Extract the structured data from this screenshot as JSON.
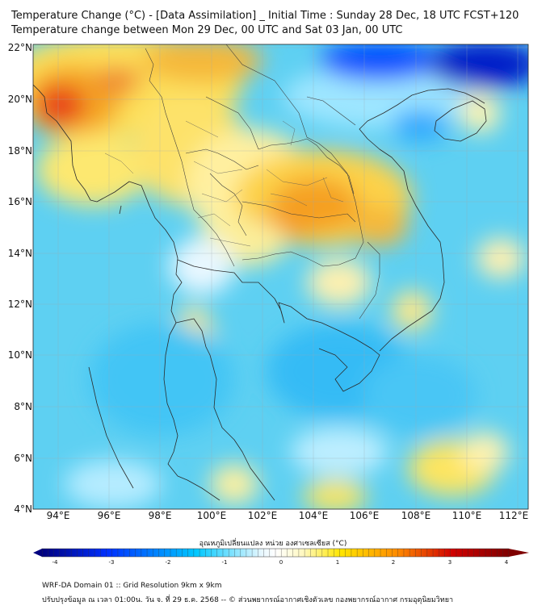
{
  "title_line1": "Temperature Change (°C) - [Data Assimilation] _ Initial Time : Sunday 28 Dec, 18 UTC FCST+120",
  "title_line2": "Temperature change between Mon 29 Dec, 00 UTC and Sat 03 Jan, 00 UTC",
  "lat_labels": [
    "22°N",
    "20°N",
    "18°N",
    "16°N",
    "14°N",
    "12°N",
    "10°N",
    "8°N",
    "6°N",
    "4°N"
  ],
  "lon_labels": [
    "94°E",
    "96°E",
    "98°E",
    "100°E",
    "102°E",
    "104°E",
    "106°E",
    "108°E",
    "110°E",
    "112°E"
  ],
  "colorbar": {
    "title": "อุณหภูมิเปลี่ยนแปลง หน่วย องศาเซลเซียส (°C)",
    "ticks": [
      "-4",
      "-3",
      "-2",
      "-1",
      "0",
      "1",
      "2",
      "3",
      "4"
    ],
    "colors": [
      "#00007f",
      "#0030ff",
      "#00c8ff",
      "#ffffff",
      "#ffe600",
      "#ff8c00",
      "#d00000",
      "#7f0000"
    ]
  },
  "footer_line1": "WRF-DA Domain 01 :: Grid Resolution 9km x 9km",
  "footer_line2": "ปรับปรุงข้อมูล ณ เวลา 01:00น. วัน จ. ที่ 29 ธ.ค. 2568 -- © ส่วนพยากรณ์อากาศเชิงตัวเลข กองพยากรณ์อากาศ กรมอุตุนิยมวิทยา"
}
